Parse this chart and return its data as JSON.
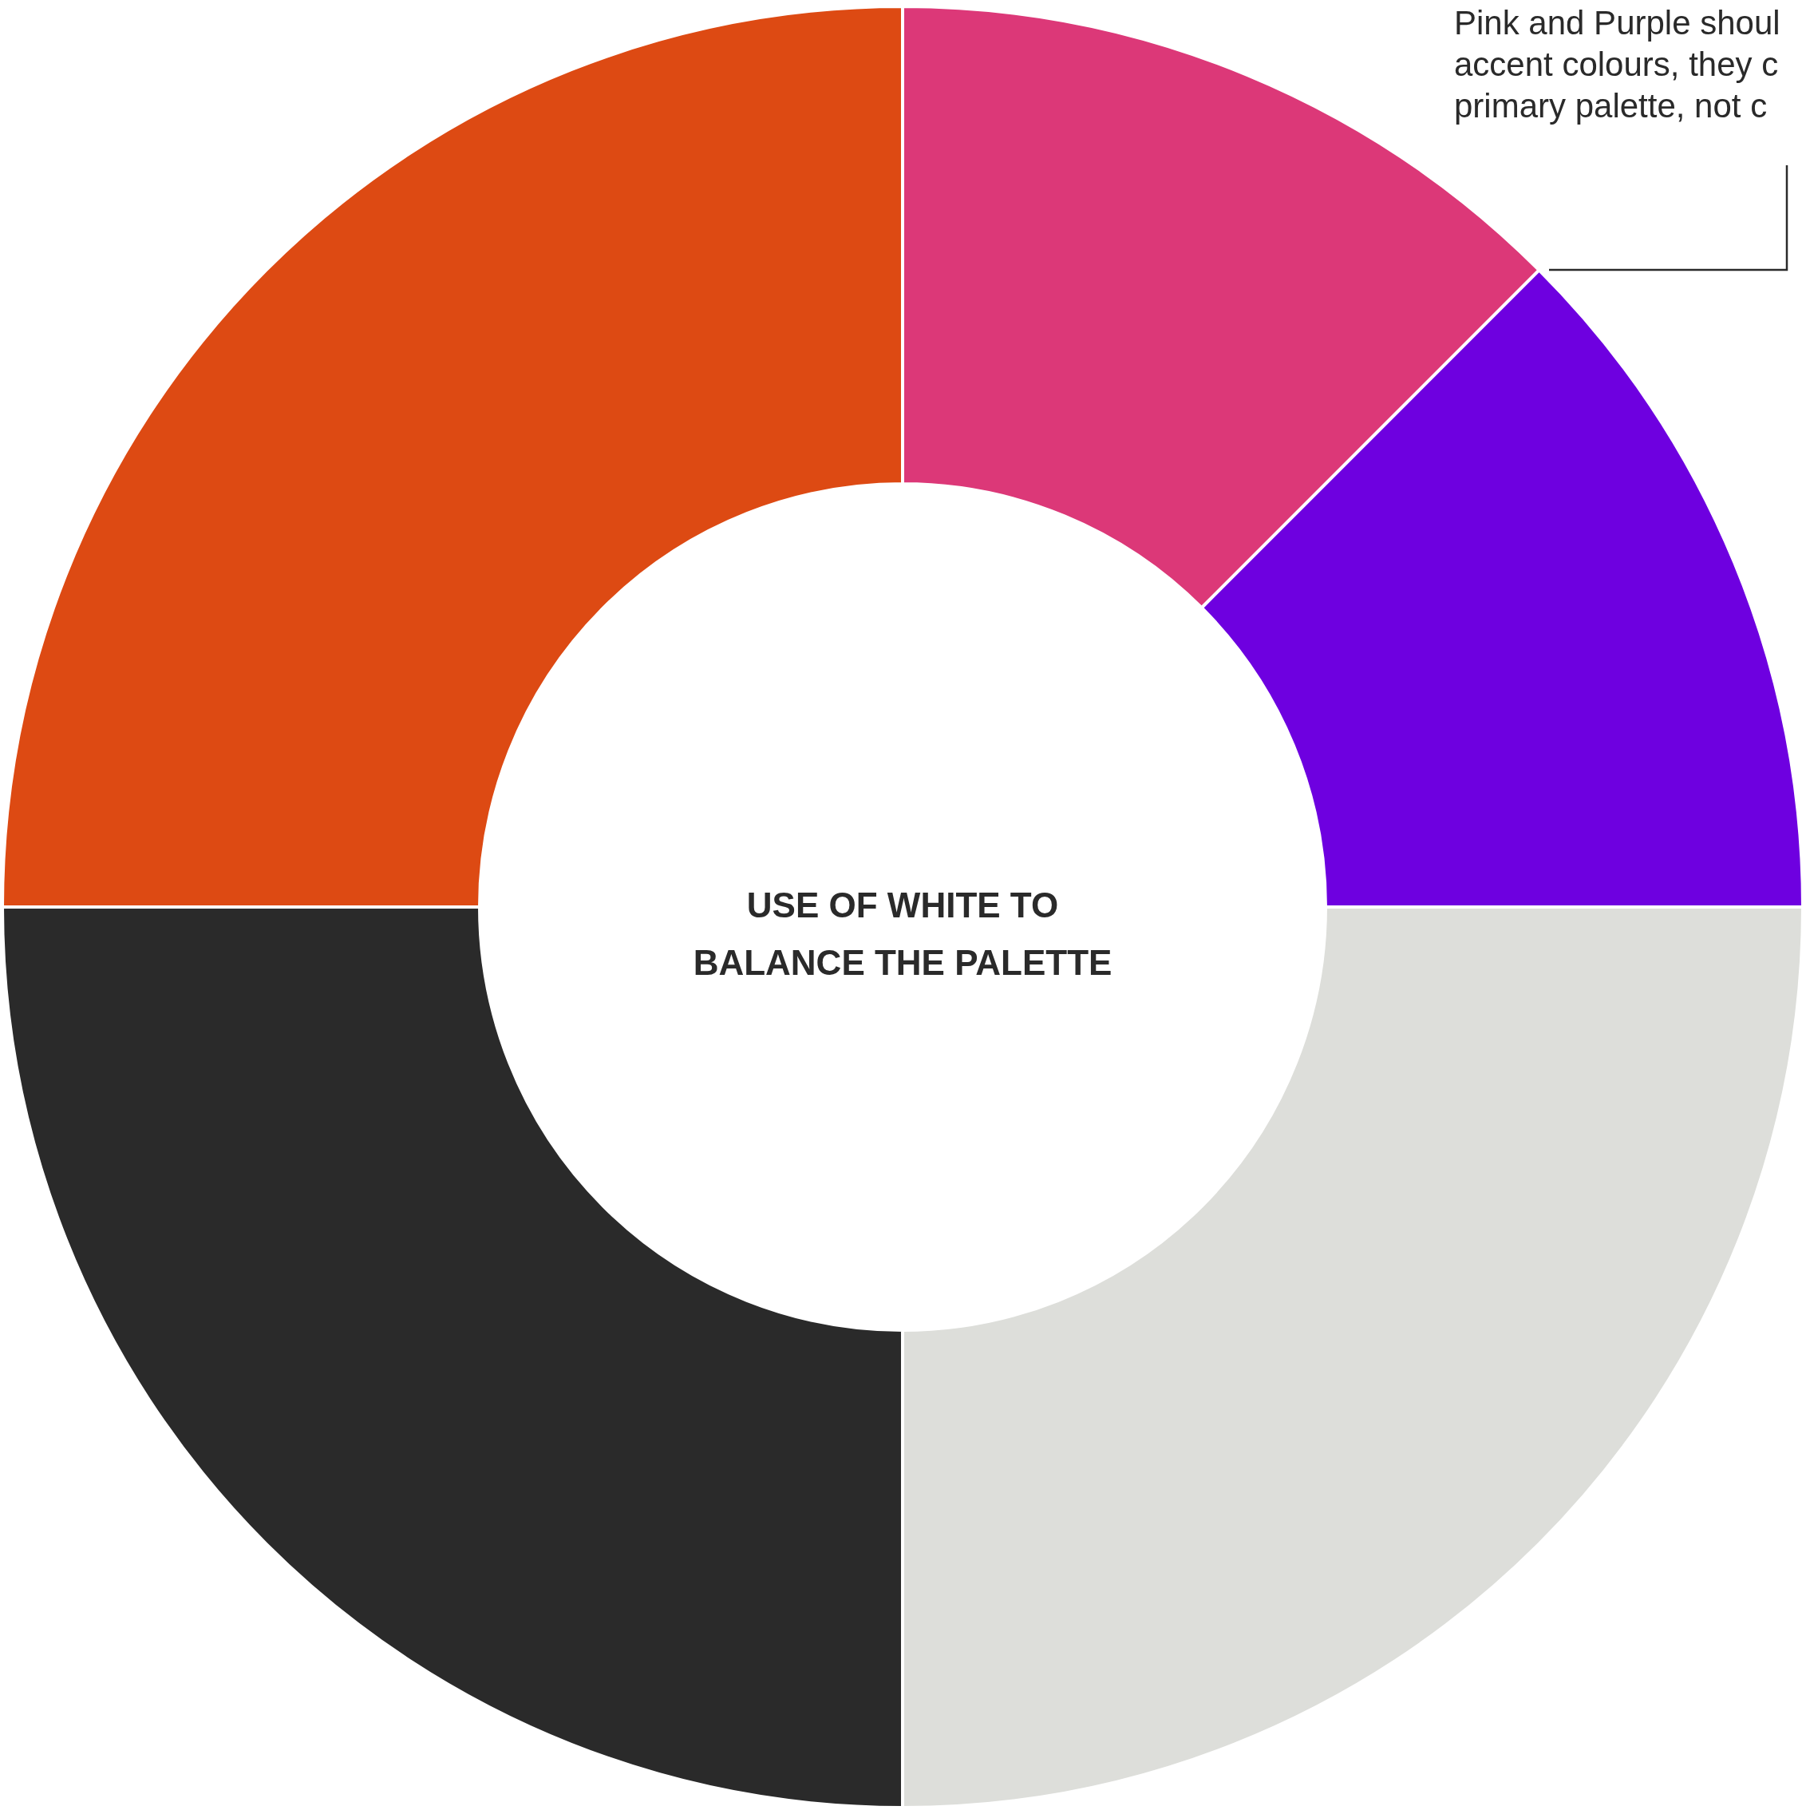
{
  "chart_data": {
    "type": "donut",
    "title": "USE OF WHITE TO\nBALANCE THE PALETTE",
    "categories": [
      null,
      null,
      null,
      null,
      null
    ],
    "values": [
      12.5,
      12.5,
      25,
      25,
      25
    ],
    "colors": [
      "#dc3878",
      "#6e00e0",
      "#dddeda",
      "#2a2a2a",
      "#dd4a13"
    ],
    "annotations": [
      "Pink and Purple shoul",
      "accent colours, they c",
      "primary palette, not c"
    ]
  }
}
